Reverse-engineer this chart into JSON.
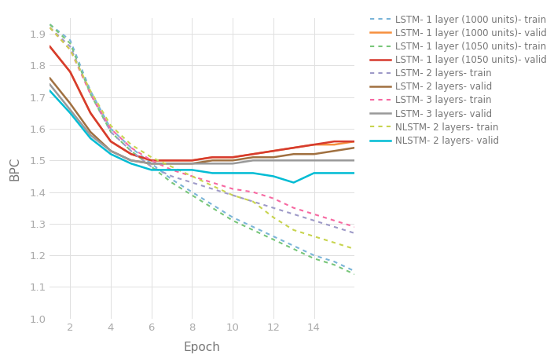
{
  "title": "",
  "xlabel": "Epoch",
  "ylabel": "BPC",
  "xlim": [
    1,
    16
  ],
  "ylim": [
    1.0,
    1.95
  ],
  "xticks": [
    2,
    4,
    6,
    8,
    10,
    12,
    14
  ],
  "yticks": [
    1.0,
    1.1,
    1.2,
    1.3,
    1.4,
    1.5,
    1.6,
    1.7,
    1.8,
    1.9
  ],
  "series": [
    {
      "label": "LSTM- 1 layer (1000 units)- train",
      "color": "#7ab4d8",
      "linestyle": "dotted",
      "linewidth": 1.5,
      "x": [
        1,
        2,
        3,
        4,
        5,
        6,
        7,
        8,
        9,
        10,
        11,
        12,
        13,
        14,
        15,
        16
      ],
      "y": [
        1.93,
        1.88,
        1.72,
        1.6,
        1.54,
        1.49,
        1.44,
        1.4,
        1.36,
        1.32,
        1.29,
        1.26,
        1.23,
        1.2,
        1.18,
        1.15
      ]
    },
    {
      "label": "LSTM- 1 layer (1000 units)- valid",
      "color": "#f6903d",
      "linestyle": "solid",
      "linewidth": 1.8,
      "x": [
        1,
        2,
        3,
        4,
        5,
        6,
        7,
        8,
        9,
        10,
        11,
        12,
        13,
        14,
        15,
        16
      ],
      "y": [
        1.86,
        1.78,
        1.65,
        1.56,
        1.52,
        1.5,
        1.5,
        1.5,
        1.51,
        1.51,
        1.52,
        1.53,
        1.54,
        1.55,
        1.55,
        1.56
      ]
    },
    {
      "label": "LSTM- 1 layer (1050 units)- train",
      "color": "#78c679",
      "linestyle": "dotted",
      "linewidth": 1.5,
      "x": [
        1,
        2,
        3,
        4,
        5,
        6,
        7,
        8,
        9,
        10,
        11,
        12,
        13,
        14,
        15,
        16
      ],
      "y": [
        1.93,
        1.87,
        1.71,
        1.59,
        1.53,
        1.48,
        1.43,
        1.39,
        1.35,
        1.31,
        1.28,
        1.25,
        1.22,
        1.19,
        1.17,
        1.14
      ]
    },
    {
      "label": "LSTM- 1 layer (1050 units)- valid",
      "color": "#d63b2f",
      "linestyle": "solid",
      "linewidth": 1.8,
      "x": [
        1,
        2,
        3,
        4,
        5,
        6,
        7,
        8,
        9,
        10,
        11,
        12,
        13,
        14,
        15,
        16
      ],
      "y": [
        1.86,
        1.78,
        1.65,
        1.56,
        1.52,
        1.5,
        1.5,
        1.5,
        1.51,
        1.51,
        1.52,
        1.53,
        1.54,
        1.55,
        1.56,
        1.56
      ]
    },
    {
      "label": "LSTM- 2 layers- train",
      "color": "#9e9ac8",
      "linestyle": "dotted",
      "linewidth": 1.5,
      "x": [
        1,
        2,
        3,
        4,
        5,
        6,
        7,
        8,
        9,
        10,
        11,
        12,
        13,
        14,
        15,
        16
      ],
      "y": [
        1.92,
        1.86,
        1.71,
        1.59,
        1.53,
        1.48,
        1.45,
        1.43,
        1.41,
        1.39,
        1.37,
        1.35,
        1.33,
        1.31,
        1.29,
        1.27
      ]
    },
    {
      "label": "LSTM- 2 layers- valid",
      "color": "#a07040",
      "linestyle": "solid",
      "linewidth": 1.8,
      "x": [
        1,
        2,
        3,
        4,
        5,
        6,
        7,
        8,
        9,
        10,
        11,
        12,
        13,
        14,
        15,
        16
      ],
      "y": [
        1.76,
        1.68,
        1.59,
        1.53,
        1.5,
        1.49,
        1.49,
        1.49,
        1.5,
        1.5,
        1.51,
        1.51,
        1.52,
        1.52,
        1.53,
        1.54
      ]
    },
    {
      "label": "LSTM- 3 layers- train",
      "color": "#f768a1",
      "linestyle": "dotted",
      "linewidth": 1.5,
      "x": [
        1,
        2,
        3,
        4,
        5,
        6,
        7,
        8,
        9,
        10,
        11,
        12,
        13,
        14,
        15,
        16
      ],
      "y": [
        1.92,
        1.85,
        1.71,
        1.6,
        1.54,
        1.5,
        1.47,
        1.45,
        1.43,
        1.41,
        1.4,
        1.38,
        1.35,
        1.33,
        1.31,
        1.29
      ]
    },
    {
      "label": "LSTM- 3 layers- valid",
      "color": "#999999",
      "linestyle": "solid",
      "linewidth": 1.8,
      "x": [
        1,
        2,
        3,
        4,
        5,
        6,
        7,
        8,
        9,
        10,
        11,
        12,
        13,
        14,
        15,
        16
      ],
      "y": [
        1.74,
        1.66,
        1.58,
        1.53,
        1.5,
        1.49,
        1.49,
        1.49,
        1.49,
        1.49,
        1.5,
        1.5,
        1.5,
        1.5,
        1.5,
        1.5
      ]
    },
    {
      "label": "NLSTM- 2 layers- train",
      "color": "#c8d44e",
      "linestyle": "dotted",
      "linewidth": 1.5,
      "x": [
        1,
        2,
        3,
        4,
        5,
        6,
        7,
        8,
        9,
        10,
        11,
        12,
        13,
        14,
        15,
        16
      ],
      "y": [
        1.92,
        1.85,
        1.72,
        1.61,
        1.55,
        1.51,
        1.48,
        1.45,
        1.42,
        1.39,
        1.37,
        1.32,
        1.28,
        1.26,
        1.24,
        1.22
      ]
    },
    {
      "label": "NLSTM- 2 layers- valid",
      "color": "#00bcd4",
      "linestyle": "solid",
      "linewidth": 1.8,
      "x": [
        1,
        2,
        3,
        4,
        5,
        6,
        7,
        8,
        9,
        10,
        11,
        12,
        13,
        14,
        15,
        16
      ],
      "y": [
        1.72,
        1.65,
        1.57,
        1.52,
        1.49,
        1.47,
        1.47,
        1.47,
        1.46,
        1.46,
        1.46,
        1.45,
        1.43,
        1.46,
        1.46,
        1.46
      ]
    }
  ],
  "background_color": "#ffffff",
  "grid_color": "#e0e0e0",
  "legend_fontsize": 8.5,
  "axis_label_fontsize": 11,
  "tick_label_fontsize": 9.5,
  "tick_label_color": "#aaaaaa",
  "axis_label_color": "#777777"
}
